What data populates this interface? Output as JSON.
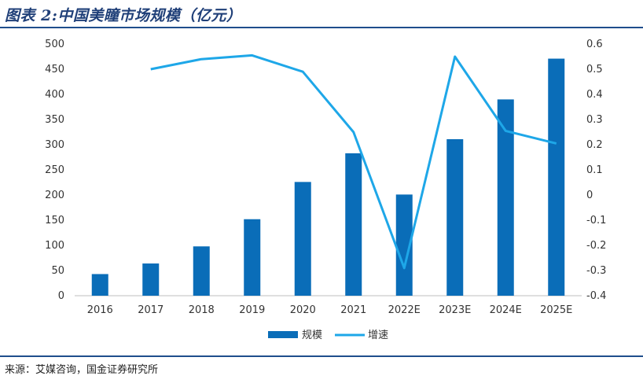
{
  "header": {
    "title": "图表 2:中国美瞳市场规模（亿元）"
  },
  "footer": {
    "source": "来源：艾媒咨询，国金证券研究所"
  },
  "colors": {
    "bar": "#0a6db8",
    "line": "#1ea7e8",
    "axis": "#bfbfbf",
    "tick_text": "#333333"
  },
  "chart_data": {
    "type": "bar",
    "categories": [
      "2016",
      "2017",
      "2018",
      "2019",
      "2020",
      "2021",
      "2022E",
      "2023E",
      "2024E",
      "2025E"
    ],
    "series": [
      {
        "name": "规模",
        "type": "bar",
        "axis": "left",
        "values": [
          43,
          64,
          98,
          152,
          226,
          283,
          201,
          311,
          390,
          471
        ]
      },
      {
        "name": "增速",
        "type": "line",
        "axis": "right",
        "values": [
          null,
          0.5,
          0.54,
          0.555,
          0.49,
          0.25,
          -0.29,
          0.55,
          0.255,
          0.205
        ]
      }
    ],
    "left_axis": {
      "min": 0,
      "max": 500,
      "ticks": [
        "0",
        "50",
        "100",
        "150",
        "200",
        "250",
        "300",
        "350",
        "400",
        "450",
        "500"
      ]
    },
    "right_axis": {
      "min": -0.4,
      "max": 0.6,
      "ticks": [
        "-0.4",
        "-0.3",
        "-0.2",
        "-0.1",
        "0",
        "0.1",
        "0.2",
        "0.3",
        "0.4",
        "0.5",
        "0.6"
      ]
    },
    "legend": {
      "position": "bottom-center"
    },
    "grid": false
  }
}
